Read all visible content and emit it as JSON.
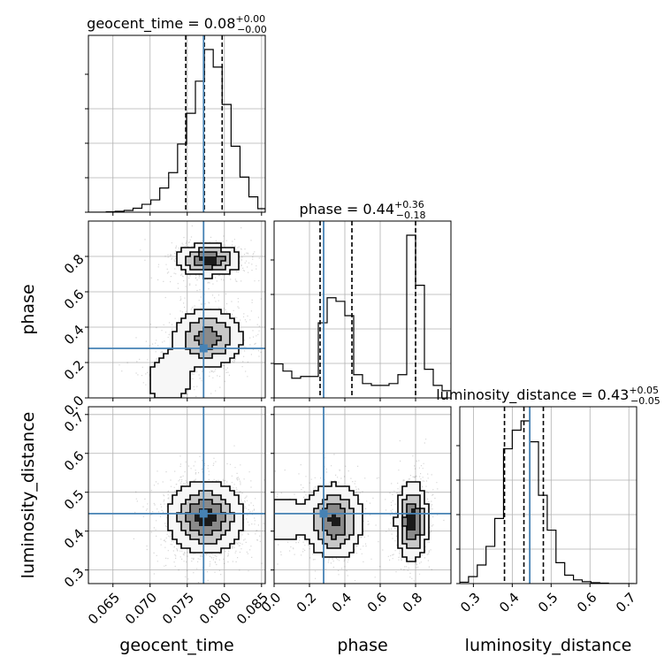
{
  "chart_data": {
    "type": "corner",
    "parameters": [
      "geocent_time",
      "phase",
      "luminosity_distance"
    ],
    "truths": {
      "geocent_time": 0.0772,
      "phase": 0.28,
      "luminosity_distance": 0.445
    },
    "truth_color": "#4682b4",
    "grid": true,
    "titles": [
      {
        "param": "geocent_time",
        "base": "geocent_time = 0.08",
        "plus": "+0.00",
        "minus": "−0.00"
      },
      {
        "param": "phase",
        "base": "phase = 0.44",
        "plus": "+0.36",
        "minus": "−0.18"
      },
      {
        "param": "luminosity_distance",
        "base": "luminosity_distance = 0.43",
        "plus": "+0.05",
        "minus": "−0.05"
      }
    ],
    "axes": {
      "geocent_time": {
        "range": [
          0.0617,
          0.0855
        ],
        "ticks": [
          "0.065",
          "0.070",
          "0.075",
          "0.080",
          "0.085"
        ],
        "tick_values": [
          0.065,
          0.07,
          0.075,
          0.08,
          0.085
        ]
      },
      "phase": {
        "range": [
          0.0,
          1.0
        ],
        "ticks": [
          "0.0",
          "0.2",
          "0.4",
          "0.6",
          "0.8"
        ],
        "tick_values": [
          0.0,
          0.2,
          0.4,
          0.6,
          0.8
        ]
      },
      "luminosity_distance": {
        "range": [
          0.265,
          0.72
        ],
        "ticks": [
          "0.3",
          "0.4",
          "0.5",
          "0.6",
          "0.7"
        ],
        "tick_values": [
          0.3,
          0.4,
          0.5,
          0.6,
          0.7
        ]
      }
    },
    "histograms": {
      "geocent_time": {
        "bins": [
          0.0617,
          0.0629,
          0.0641,
          0.0653,
          0.0665,
          0.0677,
          0.0689,
          0.0701,
          0.0713,
          0.0725,
          0.0737,
          0.0749,
          0.0761,
          0.0773,
          0.0785,
          0.0797,
          0.0809,
          0.0821,
          0.0833,
          0.0845,
          0.0855
        ],
        "counts": [
          0,
          0,
          1,
          2,
          4,
          9,
          18,
          28,
          55,
          90,
          155,
          225,
          298,
          370,
          330,
          245,
          150,
          80,
          35,
          8
        ],
        "quantiles": [
          0.0748,
          0.0773,
          0.0797
        ]
      },
      "phase": {
        "bins": [
          0.0,
          0.05,
          0.1,
          0.15,
          0.2,
          0.25,
          0.3,
          0.35,
          0.4,
          0.45,
          0.5,
          0.55,
          0.6,
          0.65,
          0.7,
          0.75,
          0.8,
          0.85,
          0.9,
          0.95,
          1.0
        ],
        "counts": [
          95,
          75,
          55,
          60,
          60,
          210,
          280,
          270,
          230,
          65,
          40,
          35,
          35,
          40,
          65,
          455,
          315,
          80,
          35,
          20
        ],
        "quantiles": [
          0.26,
          0.44,
          0.8
        ]
      },
      "luminosity_distance": {
        "bins": [
          0.265,
          0.2875,
          0.31,
          0.3325,
          0.355,
          0.3775,
          0.4,
          0.4225,
          0.445,
          0.4675,
          0.49,
          0.5125,
          0.535,
          0.5575,
          0.58,
          0.6025,
          0.625,
          0.6475,
          0.67,
          0.6925,
          0.715
        ],
        "counts": [
          3,
          15,
          40,
          80,
          140,
          290,
          330,
          350,
          305,
          190,
          115,
          45,
          18,
          8,
          4,
          2,
          1,
          0,
          0,
          0
        ],
        "quantiles": [
          0.38,
          0.43,
          0.48
        ]
      }
    },
    "density_2d": [
      {
        "x": "geocent_time",
        "y": "phase",
        "modes": [
          {
            "cx": 0.0778,
            "cy": 0.78,
            "sx": 0.0021,
            "sy": 0.045,
            "w": 1.0
          },
          {
            "cx": 0.0778,
            "cy": 0.34,
            "sx": 0.0024,
            "sy": 0.085,
            "w": 0.75
          },
          {
            "cx": 0.0725,
            "cy": 0.1,
            "sx": 0.0022,
            "sy": 0.1,
            "w": 0.25
          }
        ]
      },
      {
        "x": "geocent_time",
        "y": "luminosity_distance",
        "modes": [
          {
            "cx": 0.0775,
            "cy": 0.435,
            "sx": 0.0025,
            "sy": 0.045,
            "w": 1.0
          }
        ]
      },
      {
        "x": "phase",
        "y": "luminosity_distance",
        "modes": [
          {
            "cx": 0.34,
            "cy": 0.425,
            "sx": 0.08,
            "sy": 0.048,
            "w": 0.9
          },
          {
            "cx": 0.78,
            "cy": 0.425,
            "sx": 0.045,
            "sy": 0.05,
            "w": 1.0
          },
          {
            "cx": 0.05,
            "cy": 0.43,
            "sx": 0.08,
            "sy": 0.04,
            "w": 0.3
          }
        ]
      }
    ]
  }
}
